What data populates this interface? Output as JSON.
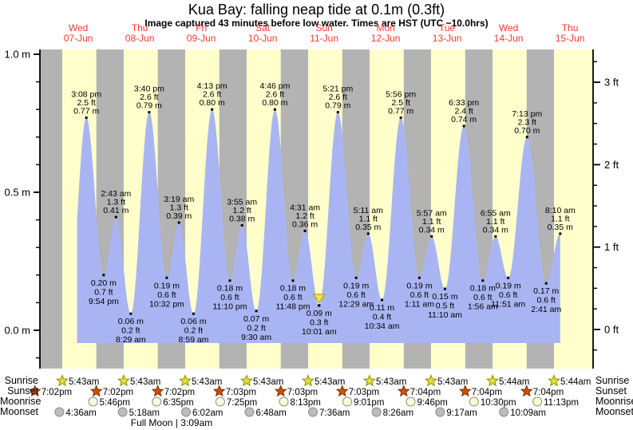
{
  "title": "Kua Bay: falling  neap tide at 0.1m (0.3ft)",
  "subtitle": "Image captured 43 minutes before low water. Times are HST (UTC −10.0hrs)",
  "footnote": "Full Moon | 3:09am",
  "colors": {
    "day_band": "#ffffcc",
    "night_band": "#b3b3b3",
    "tide_fill": "#a9b5f3",
    "axis": "#000000",
    "day_label": "#f8392f",
    "event_dot": "#000000",
    "sunrise_star_fill": "#e2df3e",
    "sunrise_star_stroke": "#8e8e00",
    "sunset_star_fill": "#c95303",
    "sunset_star_stroke": "#7c3000",
    "moonrise_fill": "#ffffd8",
    "moonset_fill": "#bdbdbd",
    "moon_stroke": "#8c8c8c",
    "marker_fill": "#f6e14e",
    "marker_stroke": "#a89b00"
  },
  "days": [
    {
      "dow": "Wed",
      "date": "07-Jun"
    },
    {
      "dow": "Thu",
      "date": "08-Jun"
    },
    {
      "dow": "Fri",
      "date": "09-Jun"
    },
    {
      "dow": "Sat",
      "date": "10-Jun"
    },
    {
      "dow": "Sun",
      "date": "11-Jun"
    },
    {
      "dow": "Mon",
      "date": "12-Jun"
    },
    {
      "dow": "Tue",
      "date": "13-Jun"
    },
    {
      "dow": "Wed",
      "date": "14-Jun"
    },
    {
      "dow": "Thu",
      "date": "15-Jun"
    }
  ],
  "astro_rows": {
    "left_labels": [
      "Sunrise",
      "Sunset",
      "Moonrise",
      "Moonset"
    ],
    "right_labels": [
      "Sunrise",
      "Sunset",
      "Moonrise",
      "Moonset"
    ],
    "sunrise": [
      {
        "day": 0,
        "time": "5:43am"
      },
      {
        "day": 1,
        "time": "5:43am"
      },
      {
        "day": 2,
        "time": "5:43am"
      },
      {
        "day": 3,
        "time": "5:43am"
      },
      {
        "day": 4,
        "time": "5:43am"
      },
      {
        "day": 5,
        "time": "5:43am"
      },
      {
        "day": 6,
        "time": "5:43am"
      },
      {
        "day": 7,
        "time": "5:44am"
      },
      {
        "day": 8,
        "time": "5:44am"
      }
    ],
    "sunset": [
      {
        "day": -1,
        "time": "7:02pm"
      },
      {
        "day": 0,
        "time": "7:02pm"
      },
      {
        "day": 1,
        "time": "7:02pm"
      },
      {
        "day": 2,
        "time": "7:03pm"
      },
      {
        "day": 3,
        "time": "7:03pm"
      },
      {
        "day": 4,
        "time": "7:03pm"
      },
      {
        "day": 5,
        "time": "7:04pm"
      },
      {
        "day": 6,
        "time": "7:04pm"
      },
      {
        "day": 7,
        "time": "7:04pm"
      }
    ],
    "moonrise": [
      {
        "day": 0,
        "time": "5:46pm"
      },
      {
        "day": 1,
        "time": "6:35pm"
      },
      {
        "day": 2,
        "time": "7:25pm"
      },
      {
        "day": 3,
        "time": "8:13pm"
      },
      {
        "day": 4,
        "time": "9:01pm"
      },
      {
        "day": 5,
        "time": "9:46pm"
      },
      {
        "day": 6,
        "time": "10:30pm"
      },
      {
        "day": 7,
        "time": "11:13pm"
      }
    ],
    "moonset": [
      {
        "day": 0,
        "time": "4:36am"
      },
      {
        "day": 1,
        "time": "5:18am"
      },
      {
        "day": 2,
        "time": "6:02am"
      },
      {
        "day": 3,
        "time": "6:48am"
      },
      {
        "day": 4,
        "time": "7:36am"
      },
      {
        "day": 5,
        "time": "8:26am"
      },
      {
        "day": 6,
        "time": "9:17am"
      },
      {
        "day": 7,
        "time": "10:09am"
      }
    ]
  },
  "chart_data": {
    "type": "area",
    "title": "Kua Bay: falling  neap tide at 0.1m (0.3ft)",
    "x_axis": {
      "days": [
        "Wed 07-Jun",
        "Thu 08-Jun",
        "Fri 09-Jun",
        "Sat 10-Jun",
        "Sun 11-Jun",
        "Mon 12-Jun",
        "Tue 13-Jun",
        "Wed 14-Jun",
        "Thu 15-Jun"
      ]
    },
    "y_axis_left": {
      "unit": "m",
      "ticks": [
        {
          "v": 0.0,
          "label": "0.0 m"
        },
        {
          "v": 0.5,
          "label": "0.5 m"
        },
        {
          "v": 1.0,
          "label": "1.0 m"
        }
      ],
      "minor_step": 0.1
    },
    "y_axis_right": {
      "unit": "ft",
      "ticks": [
        {
          "v": 0,
          "label": "0 ft"
        },
        {
          "v": 1,
          "label": "1 ft"
        },
        {
          "v": 2,
          "label": "2 ft"
        },
        {
          "v": 3,
          "label": "3 ft"
        }
      ],
      "minor_step": 0.25
    },
    "tide_events": [
      {
        "day": 0,
        "t": "08:05",
        "kind": "low",
        "m_val": 0.06,
        "labeled": false
      },
      {
        "day": 0,
        "t": "15:08",
        "kind": "high",
        "time": "3:08 pm",
        "ft": "2.5 ft",
        "m": "0.77 m",
        "m_val": 0.77
      },
      {
        "day": 0,
        "t": "21:54",
        "kind": "low",
        "time": "9:54 pm",
        "ft": "0.7 ft",
        "m": "0.20 m",
        "m_val": 0.2
      },
      {
        "day": 1,
        "t": "02:43",
        "kind": "high",
        "time": "2:43 am",
        "ft": "1.3 ft",
        "m": "0.41 m",
        "m_val": 0.41
      },
      {
        "day": 1,
        "t": "08:29",
        "kind": "low",
        "time": "8:29 am",
        "ft": "0.2 ft",
        "m": "0.06 m",
        "m_val": 0.06
      },
      {
        "day": 1,
        "t": "15:40",
        "kind": "high",
        "time": "3:40 pm",
        "ft": "2.6 ft",
        "m": "0.79 m",
        "m_val": 0.79
      },
      {
        "day": 1,
        "t": "22:32",
        "kind": "low",
        "time": "10:32 pm",
        "ft": "0.6 ft",
        "m": "0.19 m",
        "m_val": 0.19
      },
      {
        "day": 2,
        "t": "03:19",
        "kind": "high",
        "time": "3:19 am",
        "ft": "1.3 ft",
        "m": "0.39 m",
        "m_val": 0.39
      },
      {
        "day": 2,
        "t": "08:59",
        "kind": "low",
        "time": "8:59 am",
        "ft": "0.2 ft",
        "m": "0.06 m",
        "m_val": 0.06
      },
      {
        "day": 2,
        "t": "16:13",
        "kind": "high",
        "time": "4:13 pm",
        "ft": "2.6 ft",
        "m": "0.80 m",
        "m_val": 0.8
      },
      {
        "day": 2,
        "t": "23:10",
        "kind": "low",
        "time": "11:10 pm",
        "ft": "0.6 ft",
        "m": "0.18 m",
        "m_val": 0.18
      },
      {
        "day": 3,
        "t": "03:55",
        "kind": "high",
        "time": "3:55 am",
        "ft": "1.2 ft",
        "m": "0.38 m",
        "m_val": 0.38
      },
      {
        "day": 3,
        "t": "09:30",
        "kind": "low",
        "time": "9:30 am",
        "ft": "0.2 ft",
        "m": "0.07 m",
        "m_val": 0.07
      },
      {
        "day": 3,
        "t": "16:46",
        "kind": "high",
        "time": "4:46 pm",
        "ft": "2.6 ft",
        "m": "0.80 m",
        "m_val": 0.8
      },
      {
        "day": 3,
        "t": "23:48",
        "kind": "low",
        "time": "11:48 pm",
        "ft": "0.6 ft",
        "m": "0.18 m",
        "m_val": 0.18
      },
      {
        "day": 4,
        "t": "04:31",
        "kind": "high",
        "time": "4:31 am",
        "ft": "1.2 ft",
        "m": "0.36 m",
        "m_val": 0.36
      },
      {
        "day": 4,
        "t": "10:01",
        "kind": "low",
        "time": "10:01 am",
        "ft": "0.3 ft",
        "m": "0.09 m",
        "m_val": 0.09,
        "current": true
      },
      {
        "day": 4,
        "t": "17:21",
        "kind": "high",
        "time": "5:21 pm",
        "ft": "2.6 ft",
        "m": "0.79 m",
        "m_val": 0.79
      },
      {
        "day": 5,
        "t": "00:29",
        "kind": "low",
        "time": "12:29 am",
        "ft": "0.6 ft",
        "m": "0.19 m",
        "m_val": 0.19
      },
      {
        "day": 5,
        "t": "05:11",
        "kind": "high",
        "time": "5:11 am",
        "ft": "1.1 ft",
        "m": "0.35 m",
        "m_val": 0.35
      },
      {
        "day": 5,
        "t": "10:34",
        "kind": "low",
        "time": "10:34 am",
        "ft": "0.4 ft",
        "m": "0.11 m",
        "m_val": 0.11
      },
      {
        "day": 5,
        "t": "17:56",
        "kind": "high",
        "time": "5:56 pm",
        "ft": "2.5 ft",
        "m": "0.77 m",
        "m_val": 0.77
      },
      {
        "day": 6,
        "t": "01:11",
        "kind": "low",
        "time": "1:11 am",
        "ft": "0.6 ft",
        "m": "0.19 m",
        "m_val": 0.19
      },
      {
        "day": 6,
        "t": "05:57",
        "kind": "high",
        "time": "5:57 am",
        "ft": "1.1 ft",
        "m": "0.34 m",
        "m_val": 0.34
      },
      {
        "day": 6,
        "t": "11:10",
        "kind": "low",
        "time": "11:10 am",
        "ft": "0.5 ft",
        "m": "0.15 m",
        "m_val": 0.15
      },
      {
        "day": 6,
        "t": "18:33",
        "kind": "high",
        "time": "6:33 pm",
        "ft": "2.4 ft",
        "m": "0.74 m",
        "m_val": 0.74
      },
      {
        "day": 7,
        "t": "01:56",
        "kind": "low",
        "time": "1:56 am",
        "ft": "0.6 ft",
        "m": "0.18 m",
        "m_val": 0.18
      },
      {
        "day": 7,
        "t": "06:55",
        "kind": "high",
        "time": "6:55 am",
        "ft": "1.1 ft",
        "m": "0.34 m",
        "m_val": 0.34
      },
      {
        "day": 7,
        "t": "11:51",
        "kind": "low",
        "time": "11:51 am",
        "ft": "0.6 ft",
        "m": "0.19 m",
        "m_val": 0.19
      },
      {
        "day": 7,
        "t": "19:13",
        "kind": "high",
        "time": "7:13 pm",
        "ft": "2.3 ft",
        "m": "0.70 m",
        "m_val": 0.7
      },
      {
        "day": 8,
        "t": "02:41",
        "kind": "low",
        "time": "2:41 am",
        "ft": "0.6 ft",
        "m": "0.17 m",
        "m_val": 0.17
      },
      {
        "day": 8,
        "t": "08:10",
        "kind": "high",
        "time": "8:10 am",
        "ft": "1.1 ft",
        "m": "0.35 m",
        "m_val": 0.35
      }
    ]
  }
}
